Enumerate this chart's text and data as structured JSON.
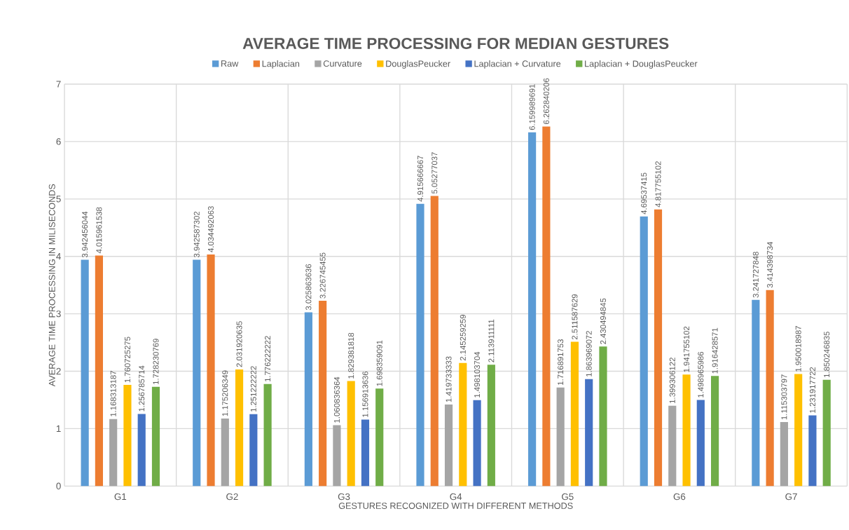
{
  "chart_data": {
    "type": "bar",
    "title": "AVERAGE TIME PROCESSING FOR MEDIAN GESTURES",
    "xlabel": "GESTURES RECOGNIZED WITH DIFFERENT METHODS",
    "ylabel": "AVERAGE TIME PROCESSING IN MILISECONDS",
    "categories": [
      "G1",
      "G2",
      "G3",
      "G4",
      "G5",
      "G6",
      "G7"
    ],
    "series": [
      {
        "name": "Raw",
        "color": "#5b9bd5",
        "values": [
          3.942456044,
          3.942587302,
          3.025863636,
          4.915666667,
          6.159989691,
          4.69537415,
          3.241727848
        ],
        "value_labels": [
          "3.942456044",
          "3.942587302",
          "3.025863636",
          "4.915666667",
          "6.159989691",
          "4.69537415",
          "3.241727848"
        ]
      },
      {
        "name": "Laplacian",
        "color": "#ed7d31",
        "values": [
          4.015961538,
          4.034492063,
          3.226745455,
          5.05277037,
          6.262840206,
          4.817755102,
          3.414398734
        ],
        "value_labels": [
          "4.015961538",
          "4.034492063",
          "3.226745455",
          "5.05277037",
          "6.262840206",
          "4.817755102",
          "3.414398734"
        ]
      },
      {
        "name": "Curvature",
        "color": "#a5a5a5",
        "values": [
          1.168313187,
          1.175206349,
          1.060836364,
          1.419733333,
          1.716891753,
          1.399306122,
          1.115303797
        ],
        "value_labels": [
          "1.168313187",
          "1.175206349",
          "1.060836364",
          "1.419733333",
          "1.716891753",
          "1.399306122",
          "1.115303797"
        ]
      },
      {
        "name": "DouglasPeucker",
        "color": "#ffc000",
        "values": [
          1.760725275,
          2.031920635,
          1.829381818,
          2.145259259,
          2.511587629,
          1.941755102,
          1.950018987
        ],
        "value_labels": [
          "1.760725275",
          "2.031920635",
          "1.829381818",
          "2.145259259",
          "2.511587629",
          "1.941755102",
          "1.950018987"
        ]
      },
      {
        "name": "Laplacian + Curvature",
        "color": "#4472c4",
        "values": [
          1.256785714,
          1.251222222,
          1.156913636,
          1.498103704,
          1.863969072,
          1.498965986,
          1.231917722
        ],
        "value_labels": [
          "1.256785714",
          "1.251222222",
          "1.156913636",
          "1.498103704",
          "1.863969072",
          "1.498965986",
          "1.231917722"
        ]
      },
      {
        "name": "Laplacian + DouglasPeucker",
        "color": "#70ad47",
        "values": [
          1.728230769,
          1.776222222,
          1.698359091,
          2.113911111,
          2.430494845,
          1.916428571,
          1.850246835
        ],
        "value_labels": [
          "1.728230769",
          "1.776222222",
          "1.698359091",
          "2.113911111",
          "2.430494845",
          "1.916428571",
          "1.850246835"
        ]
      }
    ],
    "ylim": [
      0,
      7
    ],
    "yticks": [
      0,
      1,
      2,
      3,
      4,
      5,
      6,
      7
    ],
    "grid": true,
    "legend": "top"
  }
}
